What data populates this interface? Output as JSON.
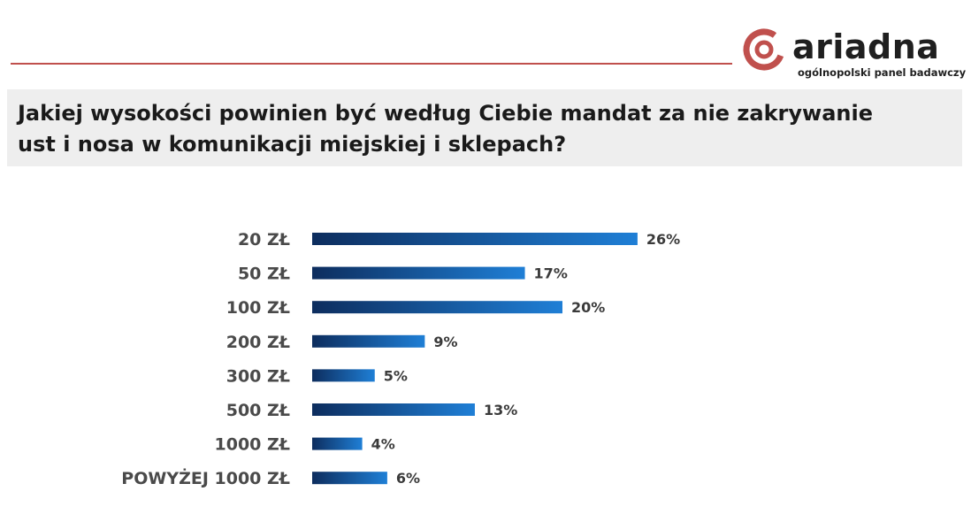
{
  "header": {
    "brand": "ariadna",
    "tagline": "ogólnopolski panel badawczy",
    "accent_color": "#c0504d"
  },
  "title": "Jakiej wysokości powinien być według Ciebie mandat za nie zakrywanie ust i nosa w komunikacji miejskiej i sklepach?",
  "chart_data": {
    "type": "bar",
    "orientation": "horizontal",
    "categories": [
      "20 ZŁ",
      "50 ZŁ",
      "100 ZŁ",
      "200 ZŁ",
      "300 ZŁ",
      "500 ZŁ",
      "1000 ZŁ",
      "POWYŻEJ 1000 ZŁ"
    ],
    "values": [
      26,
      17,
      20,
      9,
      5,
      13,
      4,
      6
    ],
    "value_labels": [
      "26%",
      "17%",
      "20%",
      "9%",
      "5%",
      "13%",
      "4%",
      "6%"
    ],
    "unit": "%",
    "bar_color_start": "#0d2d5e",
    "bar_color_end": "#1f7fd6",
    "grid": false,
    "legend": "none"
  }
}
